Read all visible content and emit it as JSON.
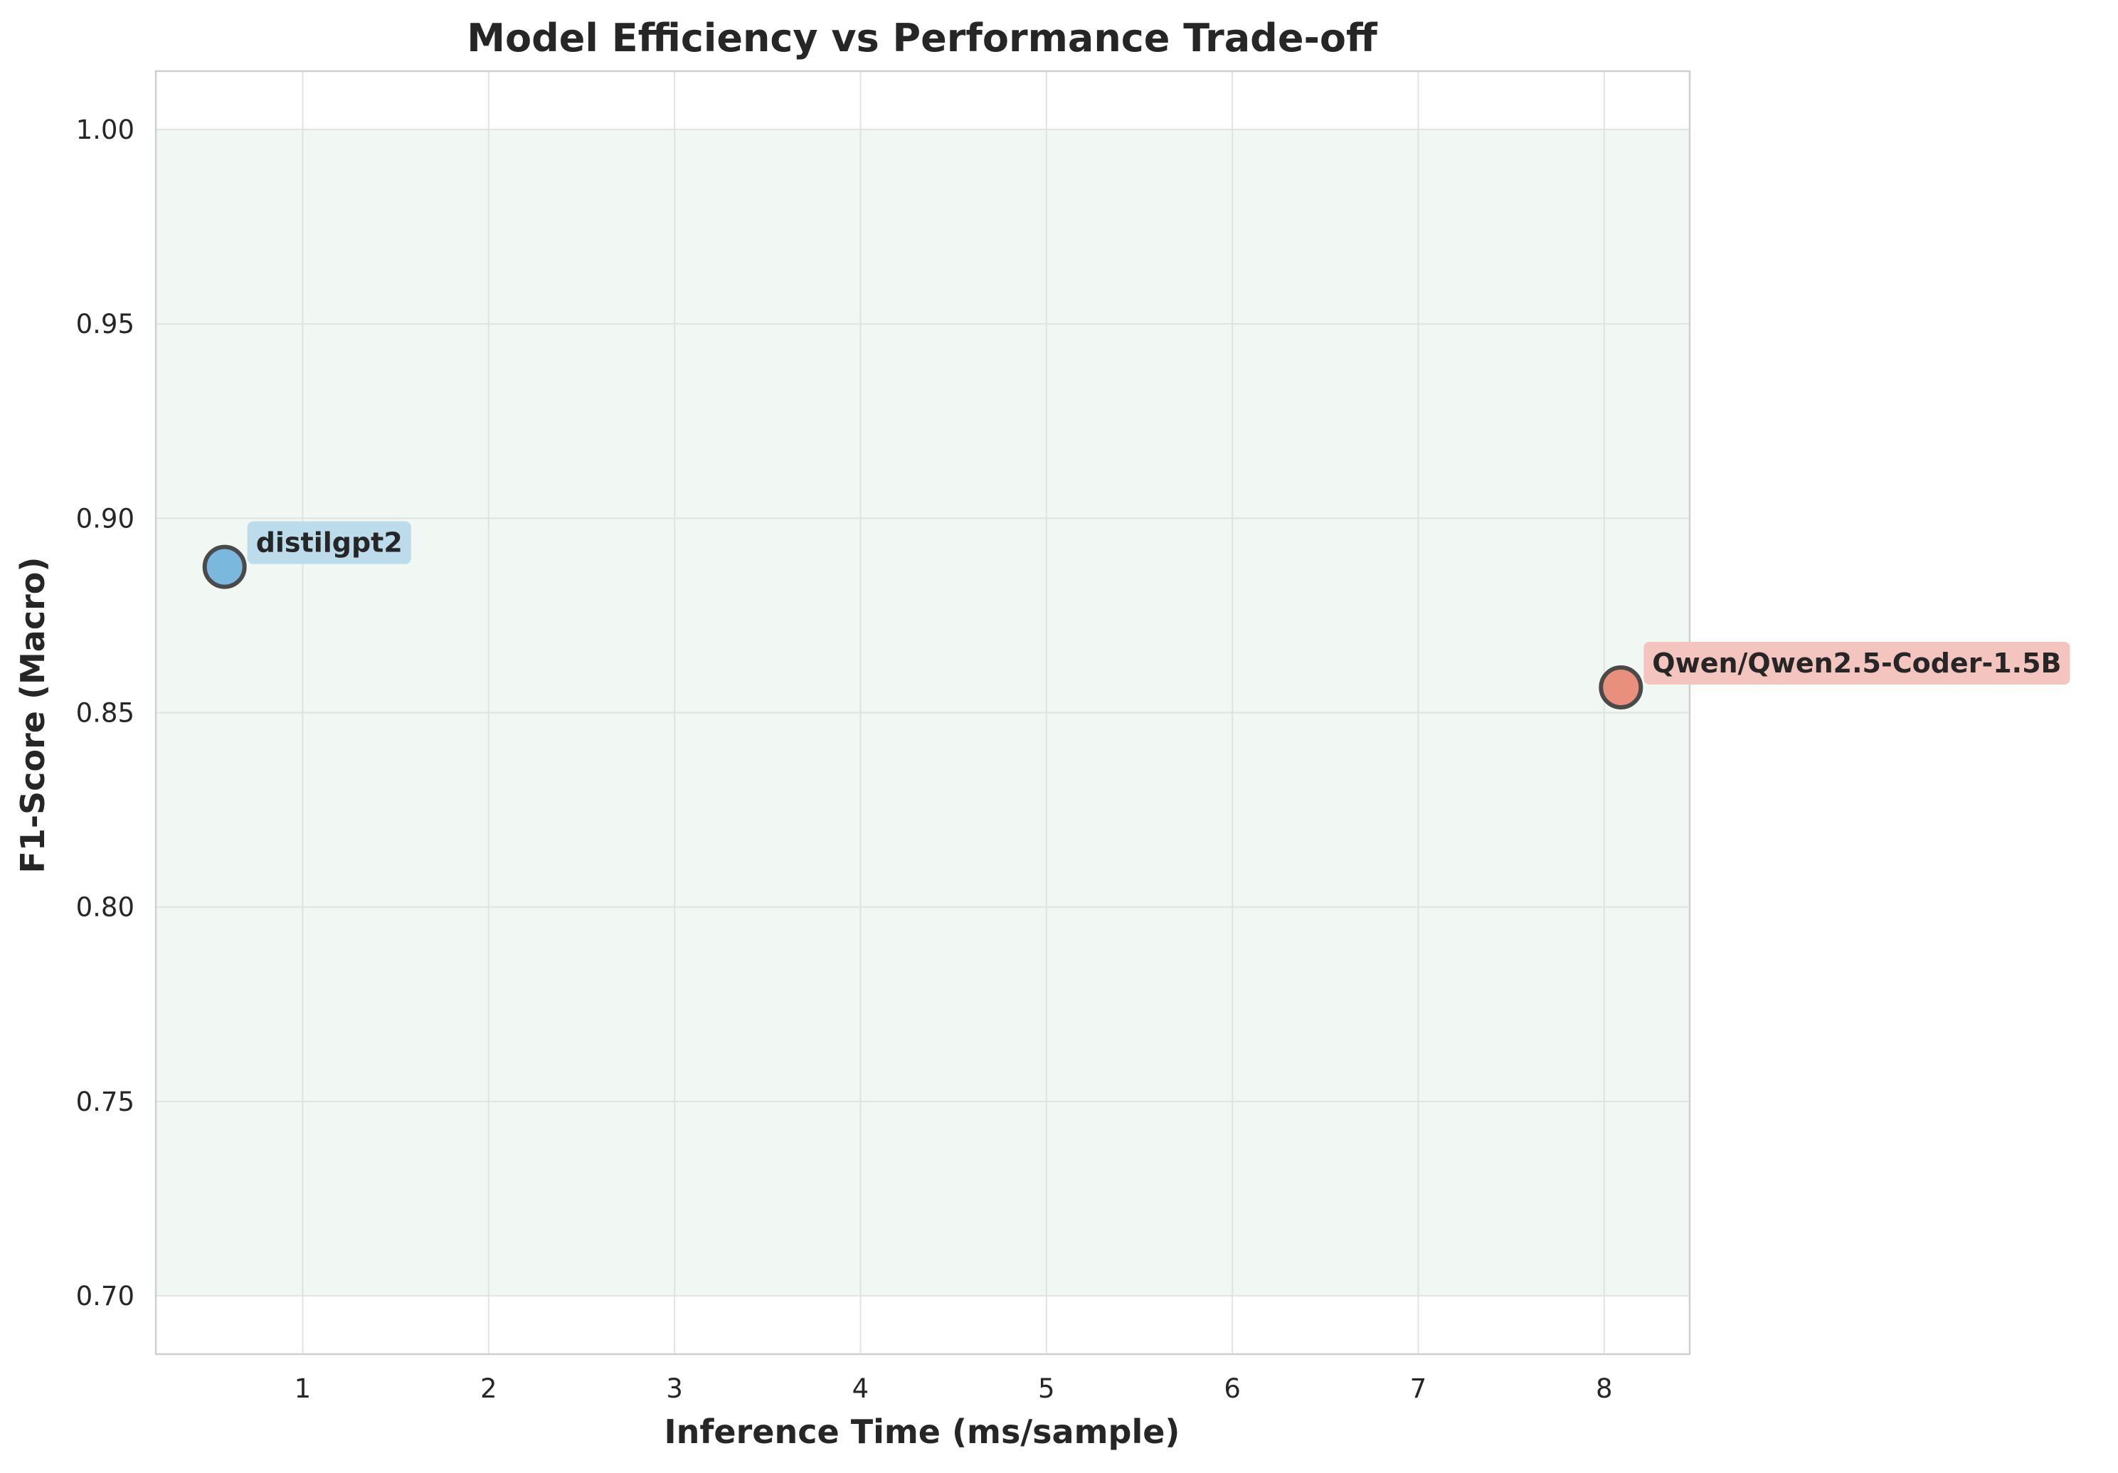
{
  "chart_data": {
    "type": "scatter",
    "title": "Model Efficiency vs Performance Trade-off",
    "xlabel": "Inference Time (ms/sample)",
    "ylabel": "F1-Score (Macro)",
    "xlim": [
      0.21,
      8.46
    ],
    "ylim": [
      0.685,
      1.015
    ],
    "xticks": [
      1,
      2,
      3,
      4,
      5,
      6,
      7,
      8
    ],
    "yticks": [
      "0.70",
      "0.75",
      "0.80",
      "0.85",
      "0.90",
      "0.95",
      "1.00"
    ],
    "grid": true,
    "shaded_band": {
      "y_from": 0.7,
      "y_to": 1.0,
      "color": "#f1f7f2"
    },
    "points": [
      {
        "label": "distilgpt2",
        "x": 0.58,
        "y": 0.8875,
        "color": "#7ab8dd",
        "label_bg": "#bcdcec"
      },
      {
        "label": "Qwen/Qwen2.5-Coder-1.5B",
        "x": 8.09,
        "y": 0.8565,
        "color": "#e8907c",
        "label_bg": "#f4c4bf"
      }
    ]
  }
}
